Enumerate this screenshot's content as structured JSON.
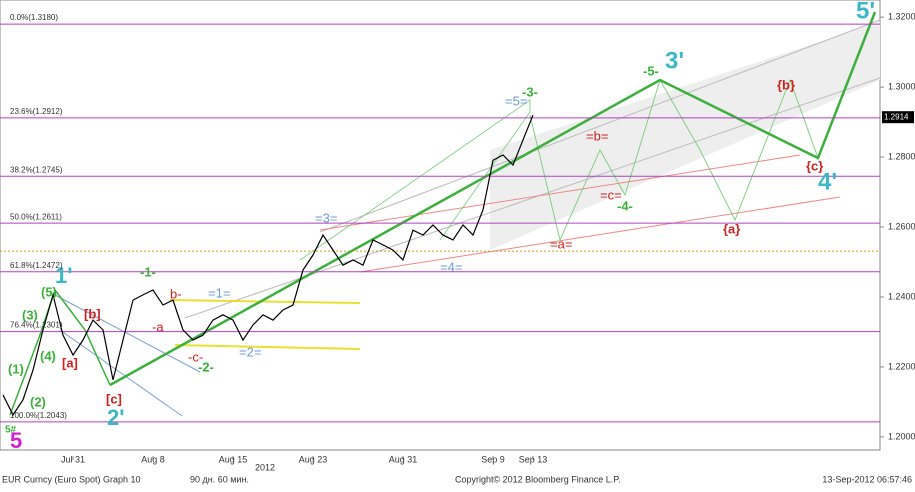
{
  "chart_data": {
    "type": "line",
    "color": "#000000",
    "categories": [
      null,
      null,
      null,
      null,
      null,
      null,
      null,
      "Jul 31",
      null,
      null,
      null,
      null,
      null,
      null,
      null,
      "Aug 8",
      null,
      null,
      null,
      null,
      null,
      null,
      null,
      "Aug 15",
      null,
      null,
      null,
      null,
      null,
      null,
      null,
      "Aug 23",
      null,
      null,
      null,
      null,
      null,
      null,
      null,
      null,
      "Aug 31",
      null,
      null,
      null,
      null,
      null,
      null,
      null,
      null,
      "Sep 9",
      null,
      null,
      null,
      "Sep 13"
    ],
    "values": [
      1.212,
      1.2063,
      1.2106,
      1.2191,
      1.2306,
      1.2406,
      1.2291,
      1.2234,
      1.2277,
      1.2334,
      1.2306,
      1.2163,
      1.2277,
      1.2391,
      1.2406,
      1.242,
      1.2377,
      1.2391,
      1.2306,
      1.2277,
      1.2291,
      1.2334,
      1.2349,
      1.2334,
      1.2277,
      1.232,
      1.2349,
      1.2334,
      1.2363,
      1.2377,
      1.2477,
      1.252,
      1.2577,
      1.2534,
      1.2491,
      1.2506,
      1.2491,
      1.2563,
      1.2549,
      1.2534,
      1.2506,
      1.2591,
      1.2577,
      1.2606,
      1.2577,
      1.2563,
      1.2606,
      1.2577,
      1.2649,
      1.2791,
      1.2806,
      1.2777,
      1.2849,
      1.292
    ],
    "ylim": [
      1.1934,
      1.3249
    ],
    "yticks": [
      {
        "value": 1.32,
        "label": "1.3200"
      },
      {
        "value": 1.3,
        "label": "1.3000"
      },
      {
        "value": 1.28,
        "label": "1.2800"
      },
      {
        "value": 1.26,
        "label": "1.2600"
      },
      {
        "value": 1.24,
        "label": "1.2400"
      },
      {
        "value": 1.22,
        "label": "1.2200"
      },
      {
        "value": 1.2,
        "label": "1.2000"
      }
    ],
    "year_label": "2012",
    "fib_levels": [
      {
        "value": 1.318,
        "label": "0.0%(1.3180)"
      },
      {
        "value": 1.2912,
        "label": "23.6%(1.2912)"
      },
      {
        "value": 1.2745,
        "label": "38.2%(1.2745)"
      },
      {
        "value": 1.2611,
        "label": "50.0%(1.2611)"
      },
      {
        "value": 1.2472,
        "label": "61.8%(1.2472)"
      },
      {
        "value": 1.2301,
        "label": "76.4%(1.2301)"
      },
      {
        "value": 1.2043,
        "label": "100.0%(1.2043)"
      }
    ],
    "fib_color": "#b040c0",
    "reference_level": 1.2531,
    "last_price": 1.2914,
    "annotations": [
      "5",
      "5#",
      "(1)",
      "(2)",
      "(3)",
      "(4)",
      "(5)",
      "1'",
      "[a]",
      "[b]",
      "[c]",
      "2'",
      "-1-",
      "b-",
      "-a",
      "-c-",
      "-2-",
      "=1=",
      "=2=",
      "=3=",
      "=4=",
      "=5=",
      "-3-",
      "=b=",
      "=c=",
      "-4-",
      "=a=",
      "-5-",
      "3'",
      "{b}",
      "{c}",
      "4'",
      "{a}",
      "5'"
    ]
  },
  "footer": {
    "left": "EUR Curncy (Euro Spot) Graph 10",
    "period": "90 дн. 60 мин.",
    "copyright": "Copyright© 2012 Bloomberg Finance L.P.",
    "timestamp": "13-Sep-2012 06:57:46"
  }
}
